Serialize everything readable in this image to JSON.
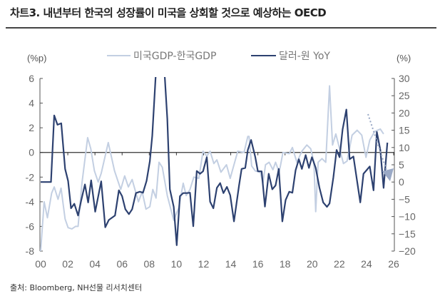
{
  "header": {
    "title": "차트3. 내년부터 한국의 성장률이 미국을 상회할 것으로 예상하는 OECD"
  },
  "footer": {
    "source": "출처: Bloomberg, NH선물 리서치센터"
  },
  "chart_data": {
    "type": "line",
    "title": "",
    "y_left_unit": "(%p)",
    "y_right_unit": "(%)",
    "y_left_lim": [
      -8,
      6
    ],
    "y_right_lim": [
      -20,
      30
    ],
    "x_lim": [
      2000,
      2026
    ],
    "x_tick_labels": [
      "00",
      "02",
      "04",
      "06",
      "08",
      "10",
      "12",
      "14",
      "16",
      "18",
      "20",
      "22",
      "24",
      "26"
    ],
    "y_left_ticks": [
      6,
      4,
      2,
      0,
      -2,
      -4,
      -6,
      -8
    ],
    "y_right_ticks": [
      30,
      25,
      20,
      15,
      10,
      5,
      0,
      -5,
      -10,
      -15,
      -20
    ],
    "grid": false,
    "legend_position": "top",
    "annotation": "dotted downward arrow after 2025 (expected decline)",
    "colors": {
      "light": "#c3cfe2",
      "dark": "#2d4170",
      "axis": "#555555",
      "arrow": "#9aa9c6"
    },
    "series": [
      {
        "name": "미국GDP-한국GDP",
        "axis": "left",
        "color": "#c3cfe2",
        "points": [
          [
            2000.0,
            -8
          ],
          [
            2000.26,
            -4
          ],
          [
            2000.5,
            -5.3
          ],
          [
            2000.81,
            -3.3
          ],
          [
            2001.0,
            -2.8
          ],
          [
            2001.28,
            -3.8
          ],
          [
            2001.5,
            -2.9
          ],
          [
            2001.8,
            -5.4
          ],
          [
            2002.02,
            -6.1
          ],
          [
            2002.3,
            -6.2
          ],
          [
            2002.57,
            -6.0
          ],
          [
            2002.76,
            -6.0
          ],
          [
            2003.04,
            -2.5
          ],
          [
            2003.46,
            1.2
          ],
          [
            2003.69,
            0.3
          ],
          [
            2003.96,
            -1.5
          ],
          [
            2004.24,
            -2.4
          ],
          [
            2004.46,
            -1.7
          ],
          [
            2004.98,
            0.8
          ],
          [
            2005.44,
            -1.5
          ],
          [
            2005.9,
            -3.0
          ],
          [
            2006.19,
            -1.9
          ],
          [
            2006.46,
            -2.8
          ],
          [
            2006.74,
            -2.2
          ],
          [
            2007.2,
            -4.0
          ],
          [
            2007.48,
            -3.2
          ],
          [
            2007.76,
            -4.6
          ],
          [
            2008.04,
            -4.4
          ],
          [
            2008.26,
            -3.0
          ],
          [
            2008.5,
            -3.7
          ],
          [
            2008.72,
            -0.8
          ],
          [
            2008.96,
            -1.2
          ],
          [
            2009.33,
            -3.5
          ],
          [
            2009.8,
            -5.5
          ],
          [
            2010.17,
            -4.5
          ],
          [
            2010.5,
            -2.5
          ],
          [
            2010.72,
            -3.5
          ],
          [
            2011.0,
            -3.0
          ],
          [
            2011.28,
            -2.0
          ],
          [
            2011.65,
            -2.1
          ],
          [
            2011.96,
            0.1
          ],
          [
            2012.24,
            -0.3
          ],
          [
            2012.48,
            0.1
          ],
          [
            2012.76,
            -0.9
          ],
          [
            2012.98,
            -0.6
          ],
          [
            2013.28,
            -1.6
          ],
          [
            2013.69,
            -1.0
          ],
          [
            2013.96,
            -2.1
          ],
          [
            2014.52,
            0.1
          ],
          [
            2014.98,
            0
          ],
          [
            2015.26,
            1.3
          ],
          [
            2015.35,
            1.3
          ],
          [
            2015.54,
            -1.1
          ],
          [
            2015.81,
            -1.5
          ],
          [
            2016.19,
            -1.6
          ],
          [
            2016.37,
            -2.5
          ],
          [
            2016.56,
            -1.0
          ],
          [
            2016.83,
            -0.8
          ],
          [
            2017.11,
            -1.4
          ],
          [
            2017.3,
            -0.8
          ],
          [
            2017.57,
            -1.6
          ],
          [
            2017.85,
            0
          ],
          [
            2018.31,
            -0.1
          ],
          [
            2018.54,
            0.4
          ],
          [
            2018.87,
            -0.8
          ],
          [
            2019.24,
            0.1
          ],
          [
            2019.61,
            0.6
          ],
          [
            2019.89,
            0.3
          ],
          [
            2020.13,
            -0.8
          ],
          [
            2020.26,
            -4.8
          ],
          [
            2020.44,
            -0.8
          ],
          [
            2020.72,
            -0.5
          ],
          [
            2021.0,
            -0.8
          ],
          [
            2021.28,
            5.4
          ],
          [
            2021.5,
            0.6
          ],
          [
            2021.74,
            1.5
          ],
          [
            2022.02,
            0.3
          ],
          [
            2022.3,
            -0.9
          ],
          [
            2022.57,
            -0.7
          ],
          [
            2022.94,
            1.4
          ],
          [
            2023.31,
            1.8
          ],
          [
            2023.65,
            1.4
          ],
          [
            2023.96,
            -0.4
          ],
          [
            2024.24,
            1.0
          ],
          [
            2024.61,
            1.7
          ],
          [
            2025.02,
            1.9
          ],
          [
            2025.26,
            1.5
          ]
        ]
      },
      {
        "name": "달러-원 YoY",
        "axis": "right",
        "color": "#2d4170",
        "points": [
          [
            2000.0,
            0
          ],
          [
            2000.76,
            0
          ],
          [
            2001.0,
            19.3
          ],
          [
            2001.24,
            16.6
          ],
          [
            2001.52,
            17.0
          ],
          [
            2001.8,
            3.8
          ],
          [
            2002.02,
            0.3
          ],
          [
            2002.24,
            -7.6
          ],
          [
            2002.48,
            -6.3
          ],
          [
            2002.76,
            -9.7
          ],
          [
            2002.98,
            -5.5
          ],
          [
            2003.26,
            -0.7
          ],
          [
            2003.5,
            -5.9
          ],
          [
            2003.72,
            0.5
          ],
          [
            2004.02,
            -8.6
          ],
          [
            2004.46,
            0.2
          ],
          [
            2004.76,
            -13.1
          ],
          [
            2005.02,
            -11.0
          ],
          [
            2005.48,
            -9.7
          ],
          [
            2005.76,
            -2.4
          ],
          [
            2006.0,
            -4.1
          ],
          [
            2006.24,
            -7.9
          ],
          [
            2006.5,
            -9.3
          ],
          [
            2006.74,
            -7.9
          ],
          [
            2007.02,
            -3.2
          ],
          [
            2007.3,
            -2.8
          ],
          [
            2007.54,
            -3.1
          ],
          [
            2007.8,
            0.3
          ],
          [
            2008.04,
            6.0
          ],
          [
            2008.22,
            13.4
          ],
          [
            2008.46,
            30
          ],
          [
            2008.8,
            48
          ],
          [
            2009.15,
            30
          ],
          [
            2009.33,
            18.3
          ],
          [
            2009.52,
            -2.1
          ],
          [
            2009.8,
            -7.2
          ],
          [
            2010.02,
            -18.3
          ],
          [
            2010.26,
            -4.1
          ],
          [
            2010.5,
            -3.2
          ],
          [
            2010.76,
            -3.2
          ],
          [
            2011.0,
            -3.1
          ],
          [
            2011.24,
            -12.8
          ],
          [
            2011.5,
            3.2
          ],
          [
            2011.74,
            2.4
          ],
          [
            2011.96,
            3.1
          ],
          [
            2012.24,
            7.2
          ],
          [
            2012.48,
            -5.7
          ],
          [
            2012.72,
            -7.6
          ],
          [
            2012.98,
            -1.7
          ],
          [
            2013.22,
            -0.3
          ],
          [
            2013.46,
            -3.2
          ],
          [
            2013.72,
            -1.4
          ],
          [
            2013.96,
            -3.8
          ],
          [
            2014.24,
            -11.4
          ],
          [
            2014.61,
            -1.0
          ],
          [
            2014.8,
            3.8
          ],
          [
            2015.07,
            4.1
          ],
          [
            2015.26,
            9.3
          ],
          [
            2015.5,
            12.2
          ],
          [
            2015.81,
            7.2
          ],
          [
            2016.0,
            3.1
          ],
          [
            2016.28,
            3.1
          ],
          [
            2016.52,
            -7.1
          ],
          [
            2016.8,
            2.4
          ],
          [
            2017.06,
            -2.1
          ],
          [
            2017.3,
            -1.0
          ],
          [
            2017.54,
            3.8
          ],
          [
            2017.8,
            -11.4
          ],
          [
            2018.04,
            -5.2
          ],
          [
            2018.31,
            -2.8
          ],
          [
            2018.54,
            -3.1
          ],
          [
            2018.78,
            3.4
          ],
          [
            2019.02,
            6.6
          ],
          [
            2019.24,
            3.8
          ],
          [
            2019.52,
            7.8
          ],
          [
            2019.76,
            4.1
          ],
          [
            2019.98,
            7.2
          ],
          [
            2020.26,
            4.1
          ],
          [
            2020.54,
            -1.7
          ],
          [
            2020.81,
            -5.9
          ],
          [
            2021.09,
            -7.2
          ],
          [
            2021.28,
            -6.2
          ],
          [
            2021.56,
            1.4
          ],
          [
            2021.8,
            9.3
          ],
          [
            2022.02,
            7.2
          ],
          [
            2022.24,
            15.2
          ],
          [
            2022.52,
            21.0
          ],
          [
            2022.76,
            6.6
          ],
          [
            2023.04,
            7.4
          ],
          [
            2023.28,
            1.0
          ],
          [
            2023.54,
            -5.9
          ],
          [
            2023.78,
            2.4
          ],
          [
            2024.24,
            4.5
          ],
          [
            2024.52,
            -2.4
          ],
          [
            2024.76,
            14.5
          ],
          [
            2025.02,
            9.3
          ],
          [
            2025.26,
            -1.7
          ],
          [
            2025.54,
            11.4
          ]
        ]
      }
    ]
  }
}
